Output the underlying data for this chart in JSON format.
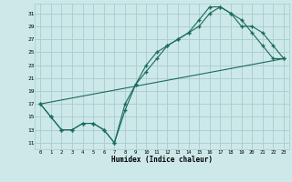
{
  "xlabel": "Humidex (Indice chaleur)",
  "bg_color": "#cce8e8",
  "grid_color": "#aacccc",
  "line_color": "#1a6b5a",
  "marker": "+",
  "xlim": [
    -0.5,
    23.5
  ],
  "ylim": [
    10.0,
    32.5
  ],
  "xticks": [
    0,
    1,
    2,
    3,
    4,
    5,
    6,
    7,
    8,
    9,
    10,
    11,
    12,
    13,
    14,
    15,
    16,
    17,
    18,
    19,
    20,
    21,
    22,
    23
  ],
  "yticks": [
    11,
    13,
    15,
    17,
    19,
    21,
    23,
    25,
    27,
    29,
    31
  ],
  "line1_x": [
    0,
    1,
    2,
    3,
    4,
    5,
    6,
    7,
    8,
    9,
    10,
    11,
    12,
    13,
    14,
    15,
    16,
    17,
    18,
    19,
    20,
    21,
    22,
    23
  ],
  "line1_y": [
    17,
    15,
    13,
    13,
    14,
    14,
    13,
    11,
    17,
    20,
    23,
    25,
    26,
    27,
    28,
    30,
    32,
    32,
    31,
    30,
    28,
    26,
    24,
    24
  ],
  "line2_x": [
    0,
    1,
    2,
    3,
    4,
    5,
    6,
    7,
    8,
    9,
    10,
    11,
    12,
    13,
    14,
    15,
    16,
    17,
    18,
    19,
    20,
    21,
    22,
    23
  ],
  "line2_y": [
    17,
    15,
    13,
    13,
    14,
    14,
    13,
    11,
    16,
    20,
    22,
    24,
    26,
    27,
    28,
    29,
    31,
    32,
    31,
    29,
    29,
    28,
    26,
    24
  ],
  "line3_x": [
    0,
    23
  ],
  "line3_y": [
    17,
    24
  ]
}
